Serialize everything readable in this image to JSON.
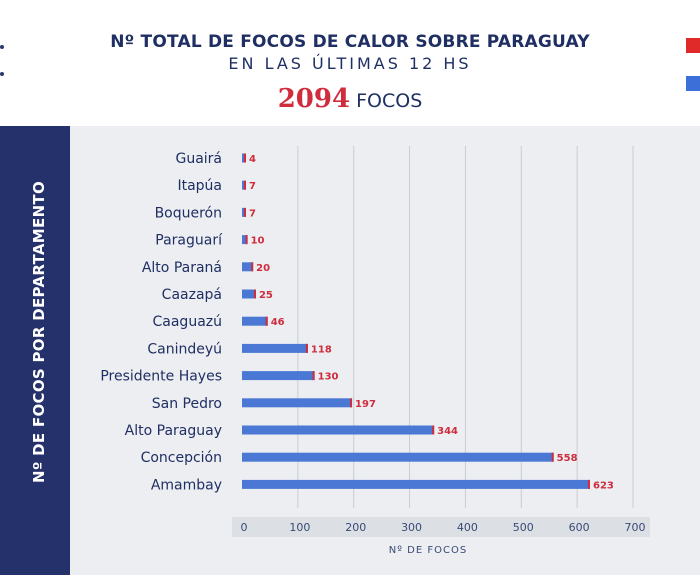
{
  "header": {
    "title": "Nº TOTAL DE FOCOS DE CALOR SOBRE PARAGUAY",
    "subtitle": "EN LAS ÚLTIMAS 12 HS",
    "total_value": "2094",
    "total_unit": "FOCOS"
  },
  "legend": {
    "swatches": [
      {
        "color": "#e02a2a"
      },
      {
        "color": "#3d6fd8"
      }
    ]
  },
  "side_label": "Nº DE FOCOS POR DEPARTAMENTO",
  "colors": {
    "bar": "#4a78d4",
    "bar_tip": "#cf2d3d",
    "value_label": "#cf2d3d",
    "label_text": "#1f2f63",
    "side_band": "#25316a",
    "plot_bg": "#eceef1",
    "grid": "#c9ccd2"
  },
  "chart_data": {
    "type": "bar",
    "orientation": "horizontal",
    "categories": [
      "Guairá",
      "Itapúa",
      "Boquerón",
      "Paraguarí",
      "Alto Paraná",
      "Caazapá",
      "Caaguazú",
      "Canindeyú",
      "Presidente Hayes",
      "San Pedro",
      "Alto Paraguay",
      "Concepción",
      "Amambay"
    ],
    "values": [
      4,
      7,
      7,
      10,
      20,
      25,
      46,
      118,
      130,
      197,
      344,
      558,
      623
    ],
    "title": "",
    "xlabel": "Nº DE FOCOS",
    "ylabel": "",
    "xlim": [
      0,
      700
    ],
    "xticks": [
      0,
      100,
      200,
      300,
      400,
      500,
      600,
      700
    ],
    "grid": true
  }
}
